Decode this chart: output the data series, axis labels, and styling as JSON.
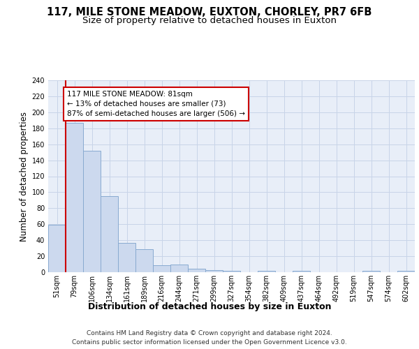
{
  "title1": "117, MILE STONE MEADOW, EUXTON, CHORLEY, PR7 6FB",
  "title2": "Size of property relative to detached houses in Euxton",
  "xlabel": "Distribution of detached houses by size in Euxton",
  "ylabel": "Number of detached properties",
  "bar_labels": [
    "51sqm",
    "79sqm",
    "106sqm",
    "134sqm",
    "161sqm",
    "189sqm",
    "216sqm",
    "244sqm",
    "271sqm",
    "299sqm",
    "327sqm",
    "354sqm",
    "382sqm",
    "409sqm",
    "437sqm",
    "464sqm",
    "492sqm",
    "519sqm",
    "547sqm",
    "574sqm",
    "602sqm"
  ],
  "bar_values": [
    59,
    187,
    152,
    95,
    37,
    29,
    9,
    10,
    4,
    3,
    2,
    0,
    2,
    0,
    2,
    0,
    0,
    0,
    2,
    0,
    2
  ],
  "bar_color": "#ccd9ee",
  "bar_edge_color": "#88aad0",
  "grid_color": "#c8d4e8",
  "background_color": "#e8eef8",
  "property_sqm": 81,
  "pct_smaller": 13,
  "n_smaller": 73,
  "pct_larger": 87,
  "n_larger": 506,
  "annotation_box_color": "#ffffff",
  "annotation_border_color": "#cc0000",
  "vline_color": "#cc0000",
  "ylim": [
    0,
    240
  ],
  "yticks": [
    0,
    20,
    40,
    60,
    80,
    100,
    120,
    140,
    160,
    180,
    200,
    220,
    240
  ],
  "footer": "Contains HM Land Registry data © Crown copyright and database right 2024.\nContains public sector information licensed under the Open Government Licence v3.0.",
  "title1_fontsize": 10.5,
  "title2_fontsize": 9.5,
  "xlabel_fontsize": 9,
  "ylabel_fontsize": 8.5,
  "tick_fontsize": 7,
  "annotation_fontsize": 7.5,
  "footer_fontsize": 6.5
}
